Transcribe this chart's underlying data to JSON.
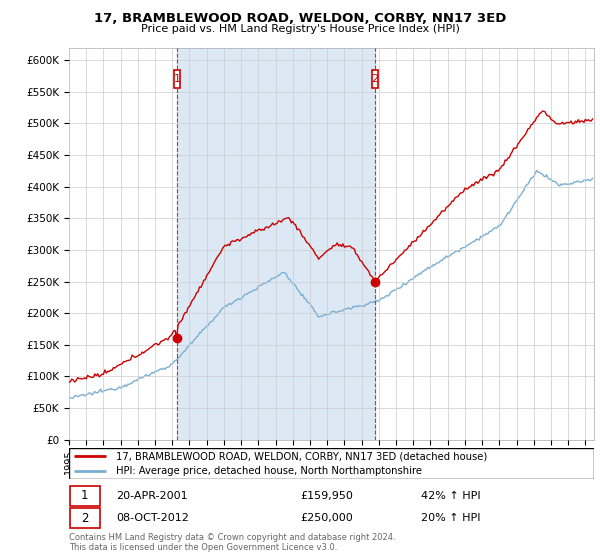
{
  "title": "17, BRAMBLEWOOD ROAD, WELDON, CORBY, NN17 3ED",
  "subtitle": "Price paid vs. HM Land Registry's House Price Index (HPI)",
  "ylabel_ticks": [
    "£0",
    "£50K",
    "£100K",
    "£150K",
    "£200K",
    "£250K",
    "£300K",
    "£350K",
    "£400K",
    "£450K",
    "£500K",
    "£550K",
    "£600K"
  ],
  "ytick_values": [
    0,
    50000,
    100000,
    150000,
    200000,
    250000,
    300000,
    350000,
    400000,
    450000,
    500000,
    550000,
    600000
  ],
  "ylim": [
    0,
    620000
  ],
  "xlim_start": 1995.0,
  "xlim_end": 2025.5,
  "hpi_color": "#7bafd4",
  "price_color": "#cc0000",
  "shade_color": "#dce9f5",
  "marker1_x": 2001.28,
  "marker1_y": 159950,
  "marker2_x": 2012.77,
  "marker2_y": 250000,
  "legend_label1": "17, BRAMBLEWOOD ROAD, WELDON, CORBY, NN17 3ED (detached house)",
  "legend_label2": "HPI: Average price, detached house, North Northamptonshire",
  "transaction1_date": "20-APR-2001",
  "transaction1_price": "£159,950",
  "transaction1_hpi": "42% ↑ HPI",
  "transaction2_date": "08-OCT-2012",
  "transaction2_price": "£250,000",
  "transaction2_hpi": "20% ↑ HPI",
  "footer": "Contains HM Land Registry data © Crown copyright and database right 2024.\nThis data is licensed under the Open Government Licence v3.0.",
  "background_color": "#ffffff",
  "grid_color": "#cccccc"
}
